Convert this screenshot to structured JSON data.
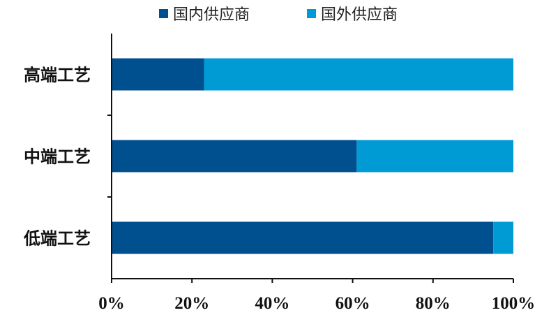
{
  "chart_data": {
    "type": "bar",
    "orientation": "horizontal",
    "stacked": true,
    "categories": [
      "高端工艺",
      "中端工艺",
      "低端工艺"
    ],
    "series": [
      {
        "name": "国内供应商",
        "values": [
          23,
          61,
          95
        ],
        "color": "#004f8f"
      },
      {
        "name": "国外供应商",
        "values": [
          77,
          39,
          5
        ],
        "color": "#009ad4"
      }
    ],
    "xlim": [
      0,
      100
    ],
    "xticks": [
      "0%",
      "20%",
      "40%",
      "60%",
      "80%",
      "100%"
    ],
    "grid": false,
    "legend": "top"
  }
}
